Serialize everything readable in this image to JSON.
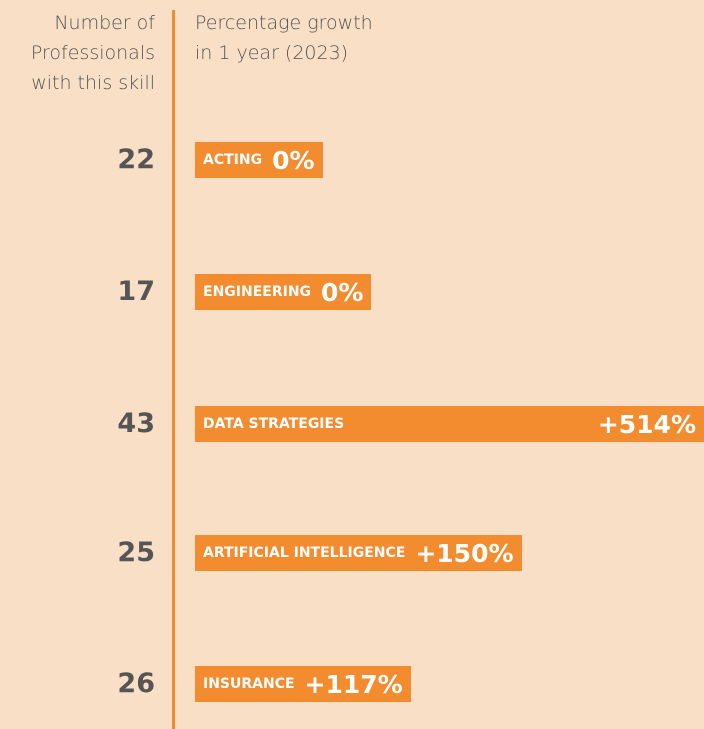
{
  "chart_data": {
    "type": "bar",
    "orientation": "horizontal",
    "left_header": "Number of Professionals with this skill",
    "right_header": "Percentage growth in 1 year (2023)",
    "categories": [
      "ACTING",
      "ENGINEERING",
      "DATA STRATEGIES",
      "ARTIFICIAL INTELLIGENCE",
      "INSURANCE"
    ],
    "counts": [
      22,
      17,
      43,
      25,
      26
    ],
    "values": [
      0,
      0,
      514,
      150,
      117
    ],
    "value_labels": [
      "0%",
      "0%",
      "+514%",
      "+150%",
      "+117%"
    ],
    "color": "#f38b2f"
  }
}
